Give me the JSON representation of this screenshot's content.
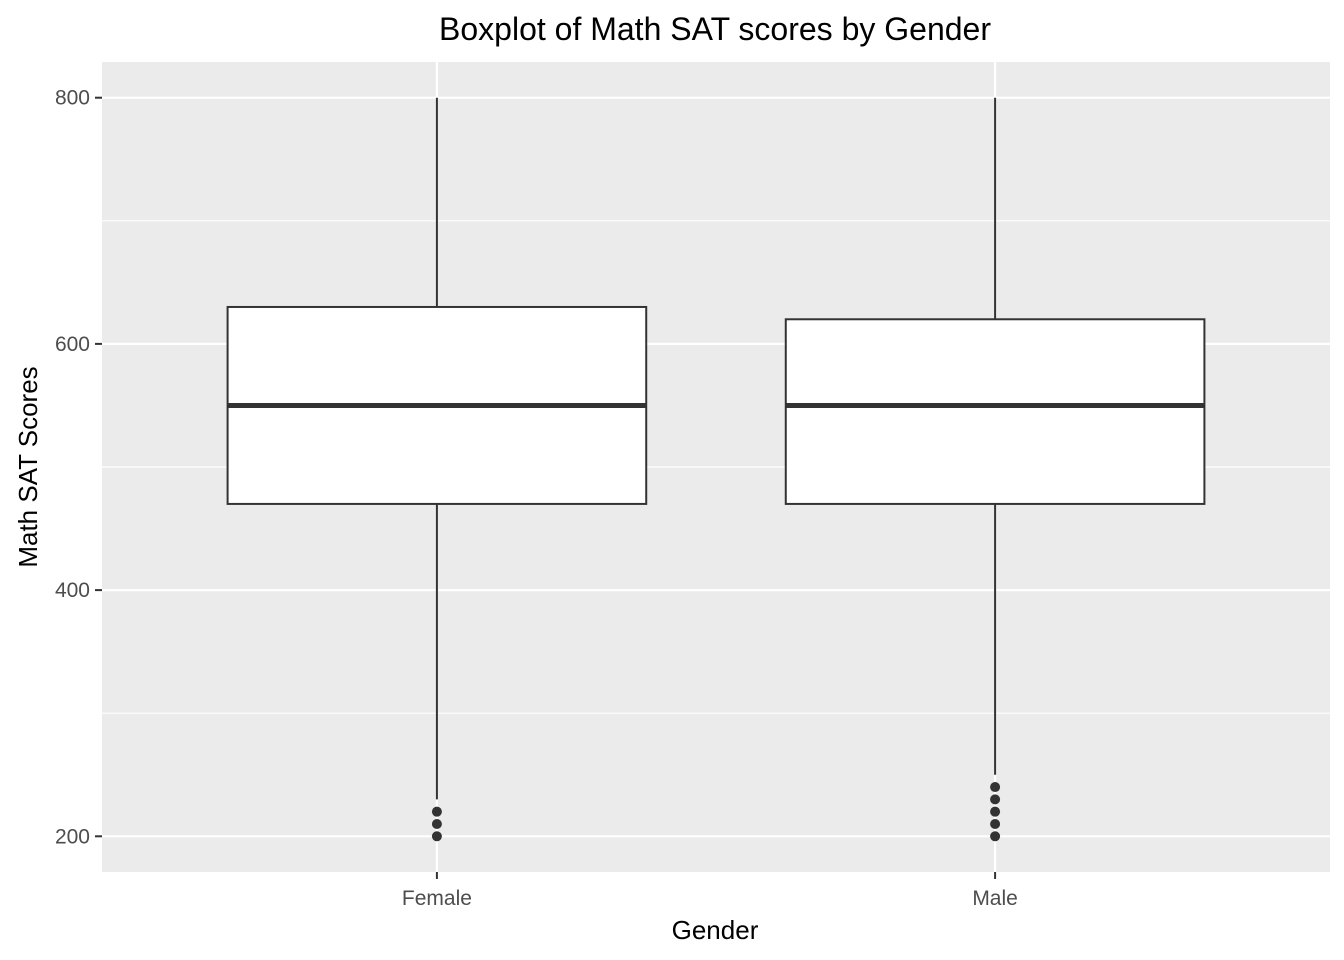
{
  "chart_data": {
    "type": "boxplot",
    "title": "Boxplot of Math SAT scores by Gender",
    "xlabel": "Gender",
    "ylabel": "Math SAT Scores",
    "categories": [
      "Female",
      "Male"
    ],
    "ylim": [
      171,
      829
    ],
    "yticks": [
      200,
      400,
      600,
      800
    ],
    "y_minor_ticks": [
      300,
      500,
      700
    ],
    "grid": true,
    "boxes": [
      {
        "category": "Female",
        "whisker_low": 230,
        "q1": 470,
        "median": 550,
        "q3": 630,
        "whisker_high": 800,
        "outliers": [
          200,
          210,
          220
        ]
      },
      {
        "category": "Male",
        "whisker_low": 250,
        "q1": 470,
        "median": 550,
        "q3": 620,
        "whisker_high": 800,
        "outliers": [
          200,
          210,
          220,
          230,
          240
        ]
      }
    ],
    "colors": {
      "panel": "#ebebeb",
      "grid": "#ffffff",
      "box_fill": "#ffffff",
      "box_line": "#333333",
      "tick_text": "#4d4d4d"
    }
  }
}
